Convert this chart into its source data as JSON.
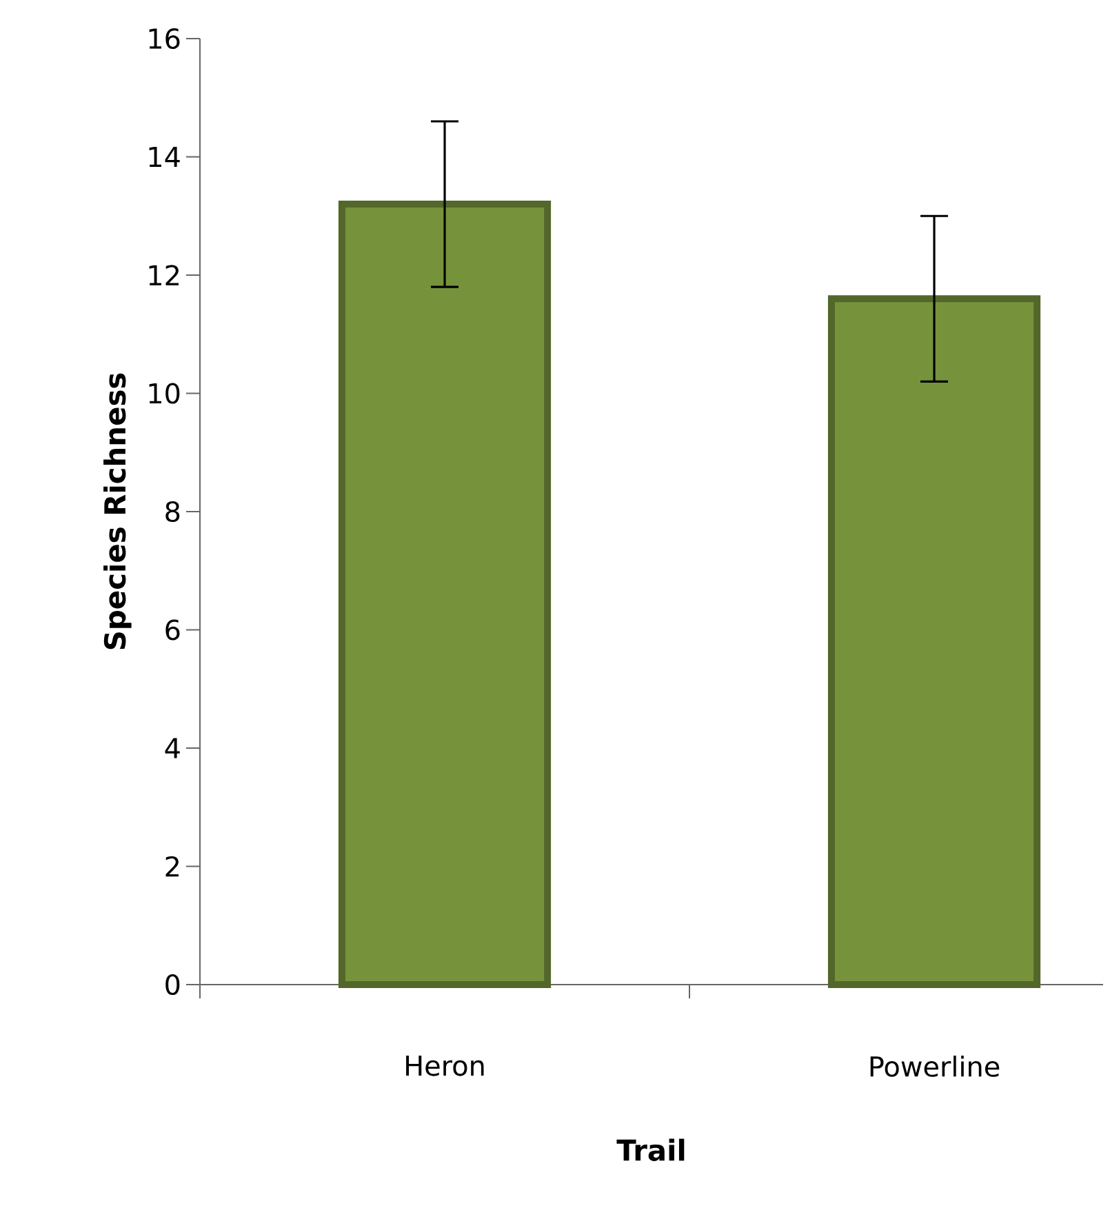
{
  "chart_data": {
    "type": "bar",
    "xlabel": "Trail",
    "ylabel": "Species Richness",
    "categories": [
      "Heron",
      "Powerline"
    ],
    "values": [
      13.2,
      11.6
    ],
    "errors": [
      1.4,
      1.4
    ],
    "color": "#76933c",
    "ylim": [
      0,
      16
    ],
    "yticks": [
      0,
      2,
      4,
      6,
      8,
      10,
      12,
      14,
      16
    ],
    "grid": false
  }
}
